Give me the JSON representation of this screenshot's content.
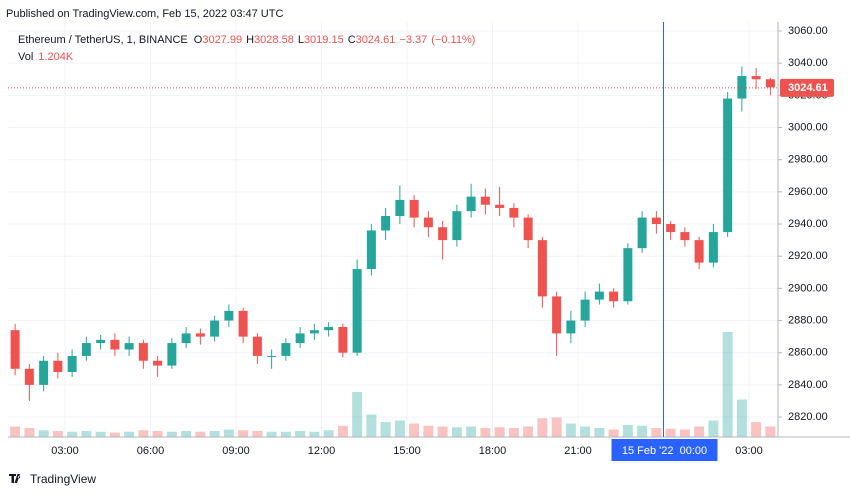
{
  "chart_data": {
    "type": "candlestick",
    "published": "Published on TradingView.com, Feb 15, 2022 03:47 UTC",
    "branding": "TradingView",
    "legend": {
      "symbol": "Ethereum / TetherUS, 1, BINANCE",
      "open_label": "O",
      "open": 3027.99,
      "high_label": "H",
      "high": 3028.58,
      "low_label": "L",
      "low": 3019.15,
      "close_label": "C",
      "close": 3024.61,
      "change": {
        "value": -3.37,
        "label": "−3.37"
      },
      "change_pct": {
        "value": -0.11,
        "label": "(−0.11%)"
      },
      "volume_label": "Vol",
      "volume": {
        "value": 1204,
        "label": "1.204K"
      }
    },
    "categories": [
      null,
      null,
      null,
      null,
      "03:00",
      null,
      null,
      null,
      null,
      null,
      "06:00",
      null,
      null,
      null,
      null,
      null,
      "09:00",
      null,
      null,
      null,
      null,
      null,
      "12:00",
      null,
      null,
      null,
      null,
      null,
      "15:00",
      null,
      null,
      null,
      null,
      null,
      "18:00",
      null,
      null,
      null,
      null,
      null,
      "21:00",
      null,
      null,
      null,
      null,
      null,
      null,
      null,
      null,
      null,
      null,
      null,
      "03:00",
      null
    ],
    "open": [
      2874,
      2850,
      2840,
      2855,
      2848,
      2858,
      2866,
      2868,
      2862,
      2866,
      2855,
      2852,
      2866,
      2872,
      2870,
      2880,
      2886,
      2870,
      2858,
      2858,
      2866,
      2872,
      2874,
      2876,
      2860,
      2912,
      2936,
      2945,
      2955,
      2944,
      2938,
      2930,
      2948,
      2957,
      2952,
      2950,
      2944,
      2930,
      2895,
      2872,
      2880,
      2893,
      2898,
      2892,
      2925,
      2944,
      2940,
      2935,
      2930,
      2916,
      2935,
      3018,
      3032,
      3030
    ],
    "high": [
      2878,
      2853,
      2858,
      2860,
      2862,
      2870,
      2871,
      2872,
      2870,
      2868,
      2858,
      2869,
      2876,
      2875,
      2883,
      2890,
      2888,
      2872,
      2862,
      2869,
      2876,
      2878,
      2879,
      2878,
      2918,
      2940,
      2950,
      2964,
      2958,
      2948,
      2942,
      2952,
      2965,
      2962,
      2963,
      2953,
      2946,
      2932,
      2898,
      2886,
      2898,
      2903,
      2900,
      2928,
      2948,
      2948,
      2942,
      2938,
      2932,
      2940,
      3022,
      3038,
      3037,
      3031
    ],
    "low": [
      2846,
      2830,
      2836,
      2844,
      2845,
      2855,
      2862,
      2858,
      2858,
      2850,
      2845,
      2850,
      2863,
      2865,
      2867,
      2876,
      2866,
      2853,
      2850,
      2855,
      2863,
      2868,
      2870,
      2857,
      2858,
      2908,
      2930,
      2940,
      2938,
      2932,
      2918,
      2926,
      2944,
      2946,
      2945,
      2938,
      2925,
      2888,
      2858,
      2866,
      2876,
      2890,
      2888,
      2890,
      2922,
      2934,
      2930,
      2926,
      2912,
      2913,
      2932,
      3010,
      3024,
      3020
    ],
    "close": [
      2850,
      2840,
      2855,
      2848,
      2858,
      2866,
      2868,
      2862,
      2866,
      2855,
      2852,
      2866,
      2872,
      2870,
      2880,
      2886,
      2870,
      2858,
      2858,
      2866,
      2872,
      2874,
      2876,
      2860,
      2912,
      2936,
      2945,
      2955,
      2944,
      2938,
      2930,
      2948,
      2957,
      2952,
      2950,
      2944,
      2930,
      2895,
      2872,
      2880,
      2893,
      2898,
      2892,
      2925,
      2944,
      2940,
      2935,
      2930,
      2916,
      2935,
      3018,
      3032,
      3030,
      3025
    ],
    "volume": [
      1400,
      1200,
      900,
      800,
      700,
      800,
      700,
      600,
      700,
      900,
      800,
      700,
      800,
      700,
      800,
      1000,
      900,
      800,
      700,
      700,
      800,
      700,
      900,
      1500,
      6000,
      3000,
      2000,
      2200,
      1800,
      1500,
      1400,
      1300,
      1400,
      1200,
      1300,
      1200,
      1400,
      2500,
      2600,
      1800,
      1400,
      1200,
      1000,
      1600,
      1500,
      1200,
      1100,
      1000,
      1400,
      2200,
      14000,
      5000,
      2000,
      1400
    ],
    "up_color": "#26a69a",
    "down_color": "#ef5350",
    "ylim": [
      2807.6,
      3065.6
    ],
    "yticks": [
      {
        "value": 2820,
        "label": "2820.00"
      },
      {
        "value": 2840,
        "label": "2840.00"
      },
      {
        "value": 2860,
        "label": "2860.00"
      },
      {
        "value": 2880,
        "label": "2880.00"
      },
      {
        "value": 2900,
        "label": "2900.00"
      },
      {
        "value": 2920,
        "label": "2920.00"
      },
      {
        "value": 2940,
        "label": "2940.00"
      },
      {
        "value": 2960,
        "label": "2960.00"
      },
      {
        "value": 2980,
        "label": "2980.00"
      },
      {
        "value": 3000,
        "label": "3000.00"
      },
      {
        "value": 3020,
        "label": "3020.00"
      },
      {
        "value": 3040,
        "label": "3040.00"
      },
      {
        "value": 3060,
        "label": "3060.00"
      }
    ],
    "volume_ylim": [
      0,
      14000
    ],
    "crosshair": {
      "index": 46,
      "label": "15 Feb '22  00:00"
    },
    "grid": true
  }
}
